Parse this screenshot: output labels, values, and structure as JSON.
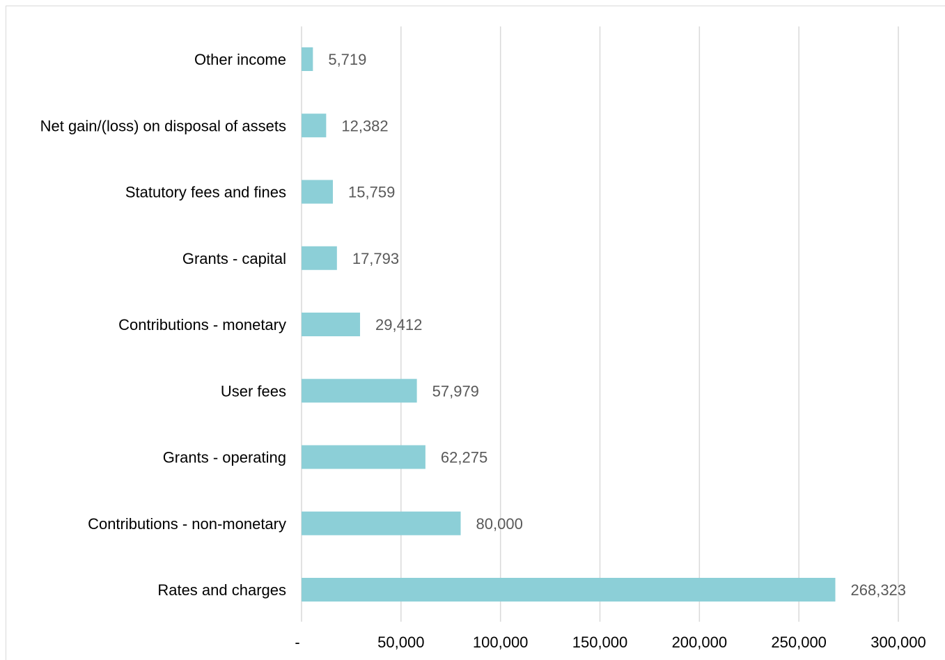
{
  "chart_data": {
    "type": "bar",
    "orientation": "horizontal",
    "categories": [
      "Other income",
      "Net gain/(loss) on disposal of assets",
      "Statutory fees and fines",
      "Grants - capital",
      "Contributions - monetary",
      "User fees",
      "Grants - operating",
      "Contributions - non-monetary",
      "Rates and charges"
    ],
    "values": [
      5719,
      12382,
      15759,
      17793,
      29412,
      57979,
      62275,
      80000,
      268323
    ],
    "value_labels": [
      "5,719",
      "12,382",
      "15,759",
      "17,793",
      "29,412",
      "57,979",
      "62,275",
      "80,000",
      "268,323"
    ],
    "x_ticks": [
      0,
      50000,
      100000,
      150000,
      200000,
      250000,
      300000
    ],
    "x_tick_labels": [
      "-",
      "50,000",
      "100,000",
      "150,000",
      "200,000",
      "250,000",
      "300,000"
    ],
    "xlim": [
      0,
      300000
    ],
    "title": "",
    "xlabel": "",
    "ylabel": "",
    "grid": "vertical",
    "legend": "none",
    "bar_color": "#8ccfd7",
    "grid_color": "#d9d9d9"
  }
}
